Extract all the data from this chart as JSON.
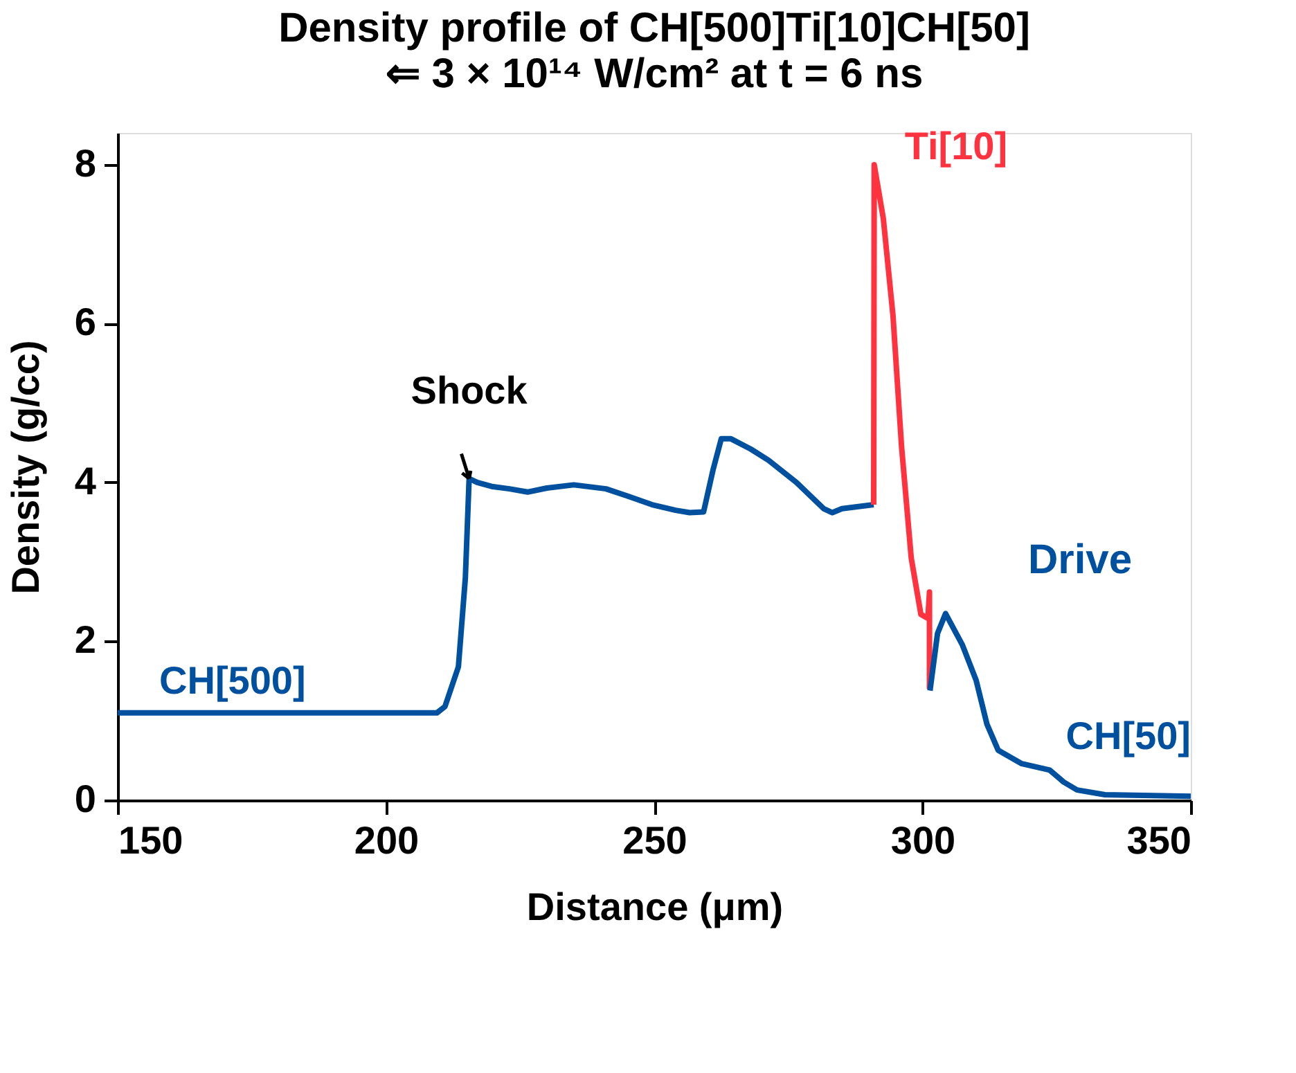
{
  "chart_data": {
    "type": "line",
    "title": "Density profile of CH[500]Ti[10]CH[50]",
    "subtitle": "⇐ 3 × 10¹⁴ W/cm² at t = 6 ns",
    "xlabel": "Distance (μm)",
    "ylabel": "Density (g/cc)",
    "xlim": [
      150,
      350
    ],
    "xticks": [
      150,
      200,
      250,
      300,
      350
    ],
    "ylim": [
      0,
      8.4
    ],
    "yticks": [
      0,
      2,
      4,
      6,
      8
    ],
    "grid": false,
    "marker": "none",
    "line_style": "solid",
    "series": [
      {
        "name": "CH[500]",
        "color": "#0050a0",
        "x": [
          150,
          209.5,
          211,
          213.5,
          214.8,
          215.5,
          217,
          219.7,
          223,
          226.4,
          230,
          235,
          241,
          245,
          249.6,
          254,
          256.6,
          259.2,
          261,
          262.5,
          264.3,
          268,
          271.3,
          276.5,
          281.6,
          283.2,
          285,
          290.9
        ],
        "values": [
          1.1,
          1.1,
          1.18,
          1.68,
          2.8,
          4.05,
          4.0,
          3.95,
          3.92,
          3.88,
          3.93,
          3.97,
          3.92,
          3.83,
          3.72,
          3.65,
          3.62,
          3.63,
          4.17,
          4.55,
          4.55,
          4.42,
          4.28,
          4.0,
          3.67,
          3.62,
          3.67,
          3.72
        ]
      },
      {
        "name": "Ti[10]",
        "color": "#ff3340",
        "x": [
          290.9,
          291,
          292.7,
          294.5,
          296.1,
          297.9,
          299.7,
          301,
          301.3,
          301.3
        ],
        "values": [
          3.72,
          8.0,
          7.32,
          6.1,
          4.45,
          3.05,
          2.34,
          2.29,
          2.62,
          1.4
        ]
      },
      {
        "name": "CH[50]",
        "color": "#0050a0",
        "x": [
          301.4,
          302.8,
          304.3,
          307.4,
          310,
          312,
          314.1,
          318.5,
          323.7,
          326.3,
          328.8,
          334,
          350
        ],
        "values": [
          1.38,
          2.1,
          2.35,
          1.96,
          1.51,
          0.96,
          0.63,
          0.46,
          0.38,
          0.23,
          0.13,
          0.07,
          0.05
        ]
      }
    ],
    "annotations": [
      {
        "text": "Shock",
        "x": 215.5,
        "y": 4.05
      },
      "Drive"
    ]
  }
}
